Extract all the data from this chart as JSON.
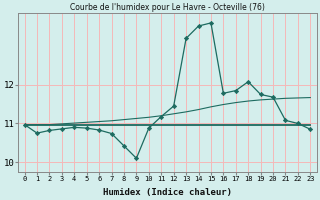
{
  "title": "Courbe de l'humidex pour Le Havre - Octeville (76)",
  "xlabel": "Humidex (Indice chaleur)",
  "bg_color": "#d4eeec",
  "grid_color": "#f5b8b8",
  "line_color": "#1d6b60",
  "hours": [
    0,
    1,
    2,
    3,
    4,
    5,
    6,
    7,
    8,
    9,
    10,
    11,
    12,
    13,
    14,
    15,
    16,
    17,
    18,
    19,
    20,
    21,
    22,
    23
  ],
  "main_curve": [
    10.97,
    10.75,
    10.82,
    10.86,
    10.9,
    10.88,
    10.83,
    10.74,
    10.42,
    10.1,
    10.88,
    11.18,
    11.45,
    13.2,
    13.52,
    13.6,
    11.78,
    11.85,
    12.08,
    11.75,
    11.68,
    11.08,
    11.0,
    10.85
  ],
  "upper_line": [
    10.97,
    10.97,
    10.97,
    10.99,
    11.01,
    11.03,
    11.05,
    11.07,
    11.1,
    11.13,
    11.16,
    11.2,
    11.25,
    11.3,
    11.36,
    11.43,
    11.49,
    11.54,
    11.58,
    11.61,
    11.63,
    11.65,
    11.66,
    11.67
  ],
  "flat_line": [
    10.97,
    10.97,
    10.97,
    10.97,
    10.97,
    10.97,
    10.97,
    10.97,
    10.97,
    10.97,
    10.97,
    10.97,
    10.97,
    10.97,
    10.97,
    10.97,
    10.97,
    10.97,
    10.97,
    10.97,
    10.97,
    10.97,
    10.97,
    10.97
  ],
  "ylim": [
    9.75,
    13.85
  ],
  "yticks": [
    10,
    11,
    12
  ],
  "xticks": [
    0,
    1,
    2,
    3,
    4,
    5,
    6,
    7,
    8,
    9,
    10,
    11,
    12,
    13,
    14,
    15,
    16,
    17,
    18,
    19,
    20,
    21,
    22,
    23
  ]
}
